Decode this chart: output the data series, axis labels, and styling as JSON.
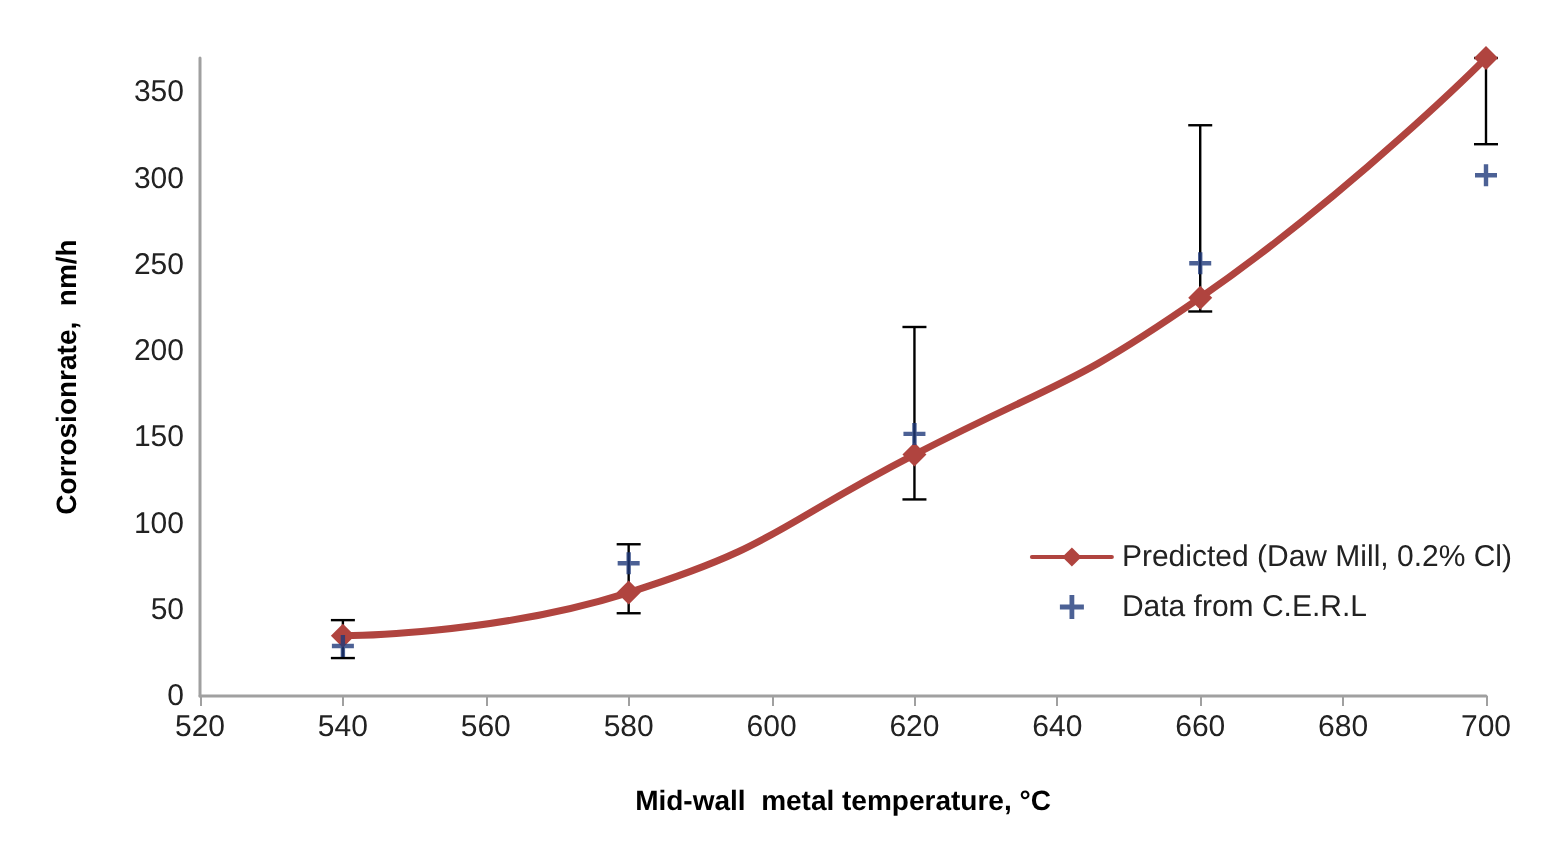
{
  "chart_data": {
    "type": "line",
    "xlabel": "Mid-wall  metal temperature, °C",
    "ylabel": "Corrosionrate,  nm/h",
    "xlim": [
      520,
      700
    ],
    "xticks": [
      520,
      540,
      560,
      580,
      600,
      620,
      640,
      660,
      680,
      700
    ],
    "ylim": [
      0,
      370
    ],
    "yticks": [
      0,
      50,
      100,
      150,
      200,
      250,
      300,
      350
    ],
    "grid": false,
    "legend": "bottom right",
    "series": [
      {
        "name": "Predicted (Daw Mill, 0.2% Cl)",
        "type": "line",
        "color": "#b0443f",
        "marker": "diamond",
        "x": [
          540,
          580,
          620,
          660,
          700
        ],
        "values": [
          35,
          60,
          140,
          231,
          370
        ],
        "errors": [
          [
            22,
            44
          ],
          [
            48,
            88
          ],
          [
            114,
            214
          ],
          [
            223,
            331
          ],
          [
            320,
            370
          ]
        ]
      },
      {
        "name": "Data from C.E.R.L",
        "type": "scatter",
        "color": "#1f3a7a",
        "marker": "cross",
        "x": [
          540,
          580,
          620,
          660,
          700
        ],
        "values": [
          29,
          77,
          152,
          251,
          302
        ]
      }
    ]
  }
}
